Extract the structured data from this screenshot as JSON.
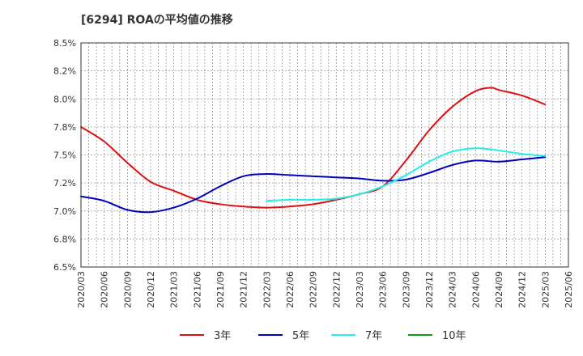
{
  "title": "[6294]  ROAの平均値の推移",
  "chart_data": {
    "type": "line",
    "title": "[6294]  ROAの平均値の推移",
    "xlabel": "",
    "ylabel": "",
    "ylim": [
      6.5,
      8.5
    ],
    "y_ticks": [
      "8.5%",
      "8.2%",
      "8.0%",
      "7.8%",
      "7.5%",
      "7.2%",
      "7.0%",
      "6.8%",
      "6.5%"
    ],
    "x_ticks": [
      "2020/03",
      "2020/06",
      "2020/09",
      "2020/12",
      "2021/03",
      "2021/06",
      "2021/09",
      "2021/12",
      "2022/03",
      "2022/06",
      "2022/09",
      "2022/12",
      "2023/03",
      "2023/06",
      "2023/09",
      "2023/12",
      "2024/03",
      "2024/06",
      "2024/09",
      "2024/12",
      "2025/03",
      "2025/06"
    ],
    "grid": true,
    "legend_position": "bottom",
    "series": [
      {
        "name": "3年",
        "color": "#dd1111",
        "x": [
          "2020/03",
          "2020/06",
          "2020/09",
          "2020/12",
          "2021/03",
          "2021/06",
          "2021/09",
          "2021/12",
          "2022/03",
          "2022/06",
          "2022/09",
          "2022/12",
          "2023/03",
          "2023/06",
          "2023/09",
          "2023/12",
          "2024/03",
          "2024/06",
          "2024/08",
          "2024/09",
          "2024/12",
          "2025/03"
        ],
        "values": [
          7.75,
          7.62,
          7.43,
          7.26,
          7.18,
          7.1,
          7.06,
          7.04,
          7.03,
          7.04,
          7.06,
          7.1,
          7.15,
          7.22,
          7.45,
          7.72,
          7.93,
          8.07,
          8.1,
          8.08,
          8.03,
          7.95
        ]
      },
      {
        "name": "5年",
        "color": "#0000bb",
        "x": [
          "2020/03",
          "2020/06",
          "2020/09",
          "2020/12",
          "2021/03",
          "2021/06",
          "2021/09",
          "2021/12",
          "2022/03",
          "2022/06",
          "2022/09",
          "2022/12",
          "2023/03",
          "2023/06",
          "2023/09",
          "2023/12",
          "2024/03",
          "2024/06",
          "2024/09",
          "2024/12",
          "2025/03"
        ],
        "values": [
          7.13,
          7.09,
          7.01,
          6.99,
          7.03,
          7.11,
          7.22,
          7.31,
          7.33,
          7.32,
          7.31,
          7.3,
          7.29,
          7.27,
          7.28,
          7.34,
          7.41,
          7.45,
          7.44,
          7.46,
          7.48
        ]
      },
      {
        "name": "7年",
        "color": "#22eeee",
        "x": [
          "2022/03",
          "2022/06",
          "2022/09",
          "2022/12",
          "2023/03",
          "2023/06",
          "2023/09",
          "2023/12",
          "2024/03",
          "2024/06",
          "2024/09",
          "2024/12",
          "2025/03"
        ],
        "values": [
          7.09,
          7.1,
          7.1,
          7.11,
          7.15,
          7.22,
          7.32,
          7.44,
          7.53,
          7.56,
          7.54,
          7.51,
          7.49
        ]
      },
      {
        "name": "10年",
        "color": "#119911",
        "x": [],
        "values": []
      }
    ]
  }
}
